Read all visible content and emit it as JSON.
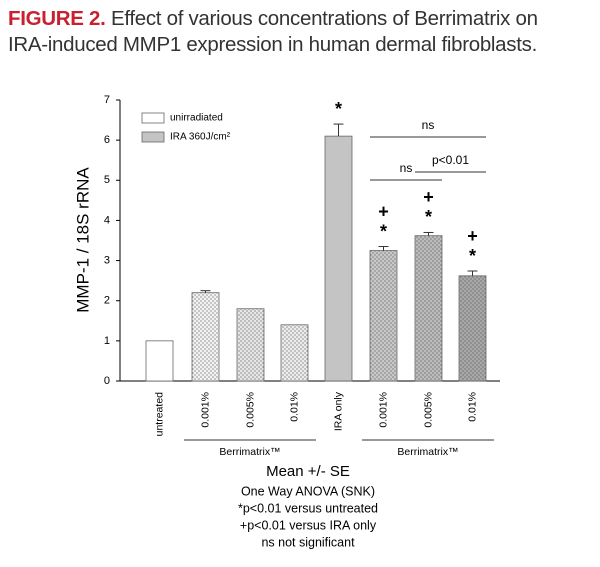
{
  "chart_data": {
    "type": "bar",
    "figure_label": "FIGURE 2.",
    "title_line1": "Effect of various concentrations of Berrimatrix on",
    "title_line2": "IRA-induced MMP1 expression in human dermal fibroblasts.",
    "y_label": "MMP-1 / 18S rRNA",
    "categories": [
      "untreated",
      "0.001%",
      "0.005%",
      "0.01%",
      "IRA only",
      "0.001%",
      "0.005%",
      "0.01%"
    ],
    "values": [
      1.0,
      2.2,
      1.8,
      1.4,
      6.1,
      3.25,
      3.62,
      2.62
    ],
    "errors": [
      null,
      0.05,
      null,
      null,
      0.3,
      0.1,
      0.08,
      0.12
    ],
    "colors": [
      "#ffffff",
      "#f2f2f2",
      "#e6e6e6",
      "#ececec",
      "#c4c4c4",
      "#c8c8c8",
      "#bcbcbc",
      "#a8a8a8"
    ],
    "dotted": [
      false,
      true,
      true,
      true,
      false,
      true,
      true,
      true
    ],
    "ylim": [
      0,
      7
    ],
    "yticks": [
      0,
      1,
      2,
      3,
      4,
      5,
      6,
      7
    ],
    "legend": [
      {
        "name": "unirradiated",
        "color": "#ffffff"
      },
      {
        "name": "IRA 360J/cm²",
        "color": "#c4c4c4"
      }
    ],
    "markers": [
      null,
      null,
      null,
      null,
      [
        "*"
      ],
      [
        "+",
        "*"
      ],
      [
        "+",
        "*"
      ],
      [
        "+",
        "*"
      ]
    ],
    "comparisons": [
      {
        "label": "ns",
        "from": 5,
        "to": 7
      },
      {
        "label": "ns",
        "from": 5,
        "to": 6
      },
      {
        "label": "p<0.01",
        "from": 6,
        "to": 7
      }
    ],
    "groups": [
      {
        "label": "Berrimatrix™",
        "from": 1,
        "to": 3
      },
      {
        "label": "Berrimatrix™",
        "from": 5,
        "to": 7
      }
    ],
    "notes": [
      "Mean +/- SE",
      "One Way ANOVA (SNK)",
      "*p<0.01 versus untreated",
      "+p<0.01 versus IRA only",
      "ns not significant"
    ]
  }
}
